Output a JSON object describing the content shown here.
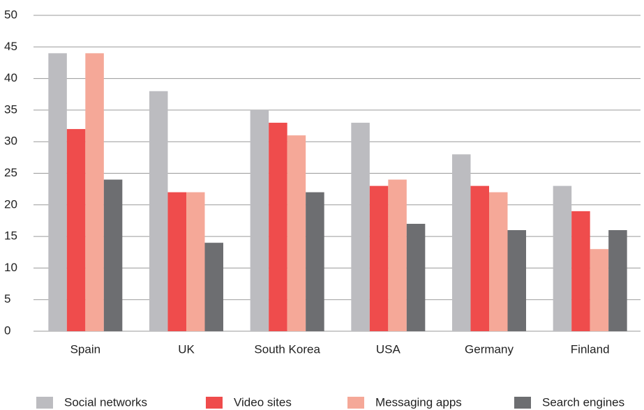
{
  "chart_data": {
    "type": "bar",
    "categories": [
      "Spain",
      "UK",
      "South Korea",
      "USA",
      "Germany",
      "Finland"
    ],
    "series": [
      {
        "name": "Social networks",
        "color": "#bcbcc0",
        "values": [
          44,
          38,
          35,
          33,
          28,
          23
        ]
      },
      {
        "name": "Video sites",
        "color": "#ef4c4c",
        "values": [
          32,
          22,
          33,
          23,
          23,
          19
        ]
      },
      {
        "name": "Messaging apps",
        "color": "#f5a898",
        "values": [
          44,
          22,
          31,
          24,
          22,
          13
        ]
      },
      {
        "name": "Search engines",
        "color": "#6d6e71",
        "values": [
          24,
          14,
          22,
          17,
          16,
          16
        ]
      }
    ],
    "ylim": [
      0,
      50
    ],
    "yticks": [
      0,
      5,
      10,
      15,
      20,
      25,
      30,
      35,
      40,
      45,
      50
    ],
    "grid": true,
    "legend": "bottom"
  }
}
